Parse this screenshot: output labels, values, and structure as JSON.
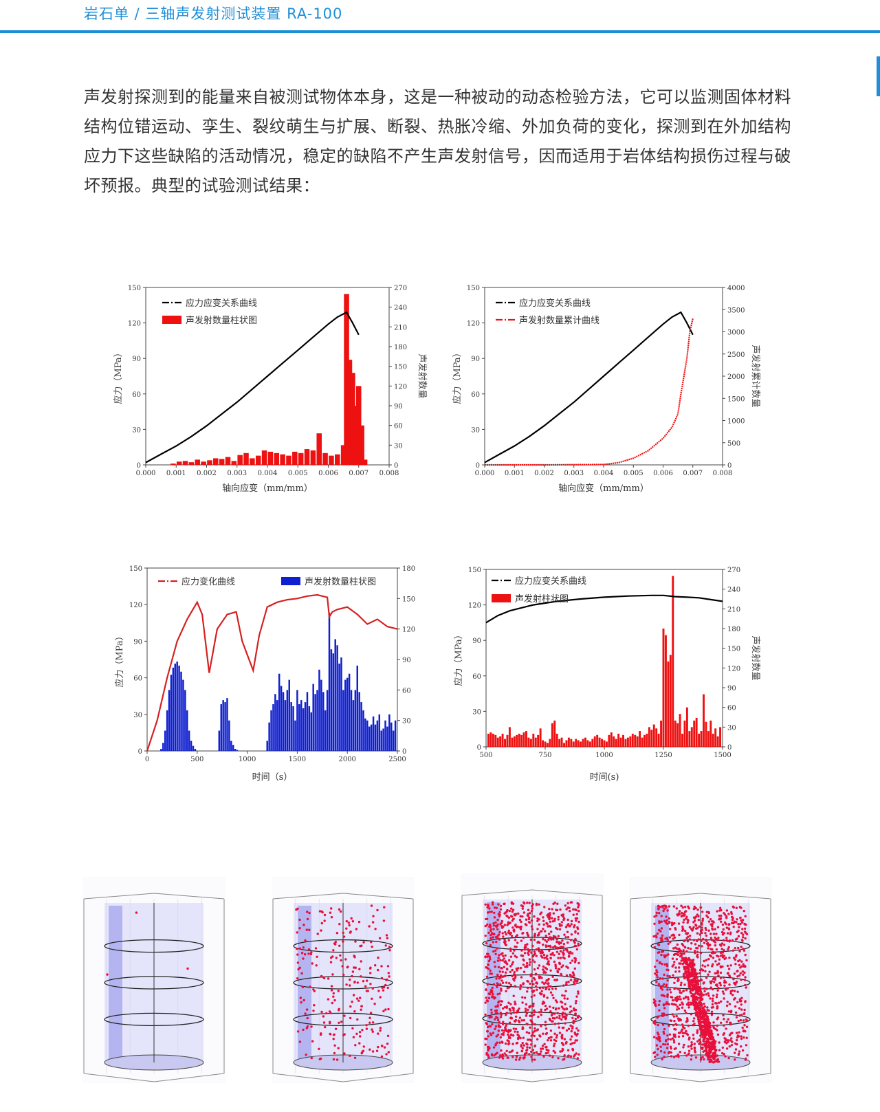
{
  "header": {
    "title": "岩石单 / 三轴声发射测试装置 RA-100"
  },
  "intro": "声发射探测到的能量来自被测试物体本身，这是一种被动的动态检验方法，它可以监测固体材料结构位错运动、孪生、裂纹萌生与扩展、断裂、热胀冷缩、外加负荷的变化，探测到在外加结构应力下这些缺陷的活动情况，稳定的缺陷不产生声发射信号，因而适用于岩体结构损伤过程与破坏预报。典型的试验测试结果：",
  "colors": {
    "accent": "#1d8fd8",
    "stress": "#000000",
    "ae_red": "#ee1111",
    "ae_blue": "#1020d0",
    "stress_red": "#d62020"
  },
  "chart_data": [
    {
      "type": "bar",
      "xlabel": "轴向应变（mm/mm）",
      "ylabel": "应力（MPa）",
      "y2label": "声发射数量",
      "xlim": [
        0,
        0.008
      ],
      "ylim": [
        0,
        150
      ],
      "y2lim": [
        0,
        270
      ],
      "xticks": [
        "0.000",
        "0.001",
        "0.002",
        "0.003",
        "0.004",
        "0.005",
        "0.006",
        "0.007",
        "0.008"
      ],
      "yticks": [
        "0",
        "30",
        "60",
        "90",
        "120",
        "150"
      ],
      "y2ticks": [
        "0",
        "30",
        "60",
        "90",
        "120",
        "150",
        "180",
        "210",
        "240",
        "270"
      ],
      "legend": [
        "应力应变关系曲线",
        "声发射数量柱状图"
      ],
      "line": {
        "name": "应力应变关系曲线",
        "x": [
          0,
          0.0005,
          0.001,
          0.0015,
          0.002,
          0.0025,
          0.003,
          0.0035,
          0.004,
          0.0045,
          0.005,
          0.0055,
          0.006,
          0.0063,
          0.0066,
          0.0068,
          0.007
        ],
        "y": [
          2,
          9,
          16,
          24,
          33,
          43,
          53,
          64,
          75,
          86,
          97,
          108,
          119,
          125,
          129,
          120,
          110
        ]
      },
      "bars": {
        "name": "声发射数量柱状图",
        "x": [
          0.0009,
          0.0011,
          0.0013,
          0.0015,
          0.0017,
          0.0019,
          0.0021,
          0.0023,
          0.0025,
          0.0027,
          0.0029,
          0.0031,
          0.0033,
          0.0035,
          0.0037,
          0.0039,
          0.0041,
          0.0043,
          0.0045,
          0.0047,
          0.0049,
          0.0051,
          0.0053,
          0.0055,
          0.0057,
          0.0059,
          0.0061,
          0.0063,
          0.0065,
          0.0066,
          0.0067,
          0.0068,
          0.0069,
          0.007,
          0.0071,
          0.0072
        ],
        "y": [
          2,
          5,
          6,
          4,
          8,
          5,
          7,
          10,
          9,
          12,
          6,
          15,
          18,
          10,
          14,
          22,
          20,
          18,
          16,
          14,
          20,
          18,
          24,
          22,
          48,
          18,
          14,
          16,
          30,
          260,
          160,
          140,
          90,
          120,
          60,
          8
        ]
      }
    },
    {
      "type": "line",
      "xlabel": "轴向应变（mm/mm）",
      "ylabel": "应力（MPa）",
      "y2label": "声发射累计数量",
      "xlim": [
        0,
        0.008
      ],
      "ylim": [
        0,
        150
      ],
      "y2lim": [
        0,
        4000
      ],
      "xticks": [
        "0.000",
        "0.001",
        "0.002",
        "0.003",
        "0.004",
        "0.005",
        "0.006",
        "0.007",
        "0.008"
      ],
      "yticks": [
        "0",
        "30",
        "60",
        "90",
        "120",
        "150"
      ],
      "y2ticks": [
        "0",
        "500",
        "1000",
        "1500",
        "2000",
        "2500",
        "3000",
        "3500",
        "4000"
      ],
      "legend": [
        "应力应变关系曲线",
        "声发射数量累计曲线"
      ],
      "series": [
        {
          "name": "应力应变关系曲线",
          "x": [
            0,
            0.0005,
            0.001,
            0.0015,
            0.002,
            0.0025,
            0.003,
            0.0035,
            0.004,
            0.0045,
            0.005,
            0.0055,
            0.006,
            0.0063,
            0.0066,
            0.0068,
            0.007
          ],
          "y": [
            2,
            9,
            16,
            24,
            33,
            43,
            53,
            64,
            75,
            86,
            97,
            108,
            119,
            125,
            129,
            120,
            110
          ]
        },
        {
          "name": "声发射数量累计曲线",
          "x": [
            0,
            0.002,
            0.004,
            0.0045,
            0.005,
            0.0055,
            0.006,
            0.0063,
            0.0065,
            0.0066,
            0.0067,
            0.0068,
            0.0069,
            0.007
          ],
          "y": [
            0,
            0,
            10,
            50,
            150,
            320,
            600,
            850,
            1150,
            1600,
            2000,
            2400,
            3000,
            3300
          ]
        }
      ]
    },
    {
      "type": "bar",
      "xlabel": "时间（s）",
      "ylabel": "应力（MPa）",
      "xlim": [
        0,
        2500
      ],
      "ylim": [
        0,
        150
      ],
      "y2lim": [
        0,
        180
      ],
      "xticks": [
        "0",
        "500",
        "1000",
        "1500",
        "2000",
        "2500"
      ],
      "yticks": [
        "0",
        "30",
        "60",
        "90",
        "120",
        "150"
      ],
      "y2ticks": [
        "0",
        "30",
        "60",
        "90",
        "120",
        "150",
        "180"
      ],
      "legend": [
        "应力变化曲线",
        "声发射数量柱状图"
      ],
      "line": {
        "name": "应力变化曲线",
        "x": [
          0,
          100,
          200,
          300,
          400,
          500,
          550,
          620,
          700,
          800,
          890,
          950,
          1060,
          1120,
          1200,
          1300,
          1400,
          1500,
          1600,
          1700,
          1800,
          1820,
          1850,
          1900,
          2000,
          2100,
          2200,
          2300,
          2400,
          2500
        ],
        "y": [
          0,
          25,
          60,
          90,
          108,
          122,
          112,
          64,
          100,
          112,
          114,
          90,
          66,
          95,
          118,
          122,
          124,
          125,
          127,
          128,
          126,
          110,
          114,
          116,
          118,
          112,
          104,
          108,
          102,
          100
        ]
      },
      "bars": {
        "name": "声发射数量柱状图",
        "x": [
          140,
          160,
          180,
          200,
          220,
          240,
          260,
          280,
          300,
          320,
          340,
          360,
          380,
          400,
          420,
          440,
          460,
          480,
          720,
          740,
          760,
          780,
          800,
          820,
          840,
          860,
          880,
          900,
          1200,
          1220,
          1240,
          1260,
          1280,
          1300,
          1320,
          1340,
          1360,
          1380,
          1400,
          1420,
          1440,
          1460,
          1480,
          1500,
          1520,
          1540,
          1560,
          1580,
          1600,
          1620,
          1640,
          1660,
          1680,
          1700,
          1720,
          1740,
          1760,
          1780,
          1800,
          1820,
          1840,
          1860,
          1880,
          1900,
          1920,
          1940,
          1960,
          1980,
          2000,
          2020,
          2040,
          2060,
          2080,
          2100,
          2120,
          2140,
          2160,
          2180,
          2200,
          2220,
          2240,
          2260,
          2280,
          2300,
          2320,
          2340,
          2360,
          2380,
          2400,
          2420,
          2440,
          2460,
          2480
        ],
        "y": [
          2,
          8,
          20,
          40,
          60,
          75,
          82,
          86,
          88,
          84,
          78,
          70,
          60,
          40,
          20,
          10,
          5,
          2,
          20,
          46,
          50,
          48,
          52,
          30,
          10,
          6,
          2,
          1,
          10,
          28,
          40,
          46,
          56,
          50,
          76,
          64,
          58,
          50,
          60,
          70,
          48,
          44,
          30,
          60,
          46,
          50,
          42,
          48,
          58,
          44,
          38,
          66,
          56,
          60,
          80,
          70,
          58,
          40,
          60,
          136,
          100,
          96,
          110,
          104,
          86,
          92,
          60,
          70,
          72,
          76,
          60,
          50,
          60,
          84,
          58,
          48,
          40,
          32,
          30,
          24,
          26,
          34,
          26,
          30,
          36,
          20,
          22,
          30,
          24,
          36,
          28,
          20,
          30
        ]
      }
    },
    {
      "type": "bar",
      "xlabel": "时间(s)",
      "ylabel": "应力（MPa）",
      "y2label": "声发射数量",
      "xlim": [
        500,
        1500
      ],
      "ylim": [
        0,
        150
      ],
      "y2lim": [
        0,
        270
      ],
      "xticks": [
        "500",
        "750",
        "1000",
        "1250",
        "1500"
      ],
      "yticks": [
        "0",
        "30",
        "60",
        "90",
        "120",
        "150"
      ],
      "y2ticks": [
        "0",
        "30",
        "60",
        "90",
        "120",
        "150",
        "180",
        "210",
        "240",
        "270"
      ],
      "legend": [
        "应力应变关系曲线",
        "声发射柱状图"
      ],
      "line": {
        "name": "应力应变关系曲线",
        "x": [
          500,
          550,
          600,
          700,
          800,
          900,
          1000,
          1100,
          1200,
          1250,
          1300,
          1350,
          1400,
          1450,
          1500
        ],
        "y": [
          105,
          111,
          115,
          120,
          123,
          125,
          126.5,
          127.5,
          128,
          128,
          127,
          126.5,
          126,
          124.5,
          123
        ]
      },
      "bars": {
        "name": "声发射柱状图",
        "x": [
          510,
          520,
          530,
          540,
          550,
          560,
          570,
          580,
          590,
          600,
          610,
          620,
          630,
          640,
          650,
          660,
          670,
          680,
          690,
          700,
          710,
          720,
          730,
          740,
          750,
          760,
          770,
          780,
          790,
          800,
          810,
          820,
          830,
          840,
          850,
          860,
          870,
          880,
          890,
          900,
          910,
          920,
          930,
          940,
          950,
          960,
          970,
          980,
          990,
          1000,
          1010,
          1020,
          1030,
          1040,
          1050,
          1060,
          1070,
          1080,
          1090,
          1100,
          1110,
          1120,
          1130,
          1140,
          1150,
          1160,
          1170,
          1180,
          1190,
          1200,
          1210,
          1220,
          1230,
          1240,
          1250,
          1260,
          1270,
          1280,
          1290,
          1300,
          1310,
          1320,
          1330,
          1340,
          1350,
          1360,
          1370,
          1380,
          1390,
          1400,
          1410,
          1420,
          1430,
          1440,
          1450,
          1460,
          1470,
          1480,
          1490
        ],
        "y": [
          20,
          22,
          20,
          18,
          14,
          16,
          20,
          12,
          18,
          30,
          14,
          16,
          18,
          20,
          18,
          22,
          24,
          14,
          12,
          20,
          14,
          18,
          28,
          10,
          8,
          6,
          12,
          36,
          40,
          20,
          12,
          14,
          6,
          10,
          14,
          12,
          8,
          12,
          10,
          8,
          12,
          14,
          10,
          8,
          12,
          16,
          18,
          14,
          12,
          10,
          8,
          18,
          22,
          16,
          12,
          20,
          14,
          18,
          12,
          14,
          16,
          20,
          18,
          16,
          24,
          14,
          18,
          20,
          30,
          26,
          34,
          28,
          20,
          40,
          180,
          170,
          130,
          140,
          260,
          40,
          36,
          50,
          20,
          40,
          60,
          24,
          30,
          40,
          44,
          20,
          24,
          80,
          38,
          24,
          40,
          20,
          28,
          16,
          30
        ]
      }
    }
  ]
}
